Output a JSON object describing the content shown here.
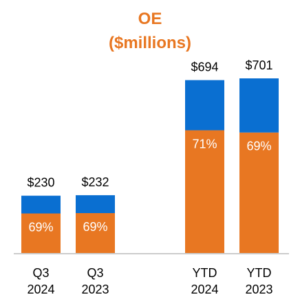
{
  "colors": {
    "accent": "#E87722",
    "primary_segment": "#E87722",
    "secondary_segment": "#0A6FD1",
    "axis": "#999999"
  },
  "chart_data": {
    "type": "bar",
    "stacked": true,
    "title": [
      "OE",
      "($millions)"
    ],
    "categories": [
      [
        "Q3",
        "2024"
      ],
      [
        "Q3",
        "2023"
      ],
      [
        "YTD",
        "2024"
      ],
      [
        "YTD",
        "2023"
      ]
    ],
    "totals": [
      230,
      232,
      694,
      701
    ],
    "total_labels": [
      "$230",
      "$232",
      "$694",
      "$701"
    ],
    "percent_labels": [
      "69%",
      "69%",
      "71%",
      "69%"
    ],
    "series": [
      {
        "values": [
          158.7,
          160.1,
          492.7,
          483.7
        ]
      },
      {
        "values": [
          71.3,
          71.9,
          201.3,
          217.3
        ]
      }
    ],
    "grid": false,
    "legend": "none"
  }
}
